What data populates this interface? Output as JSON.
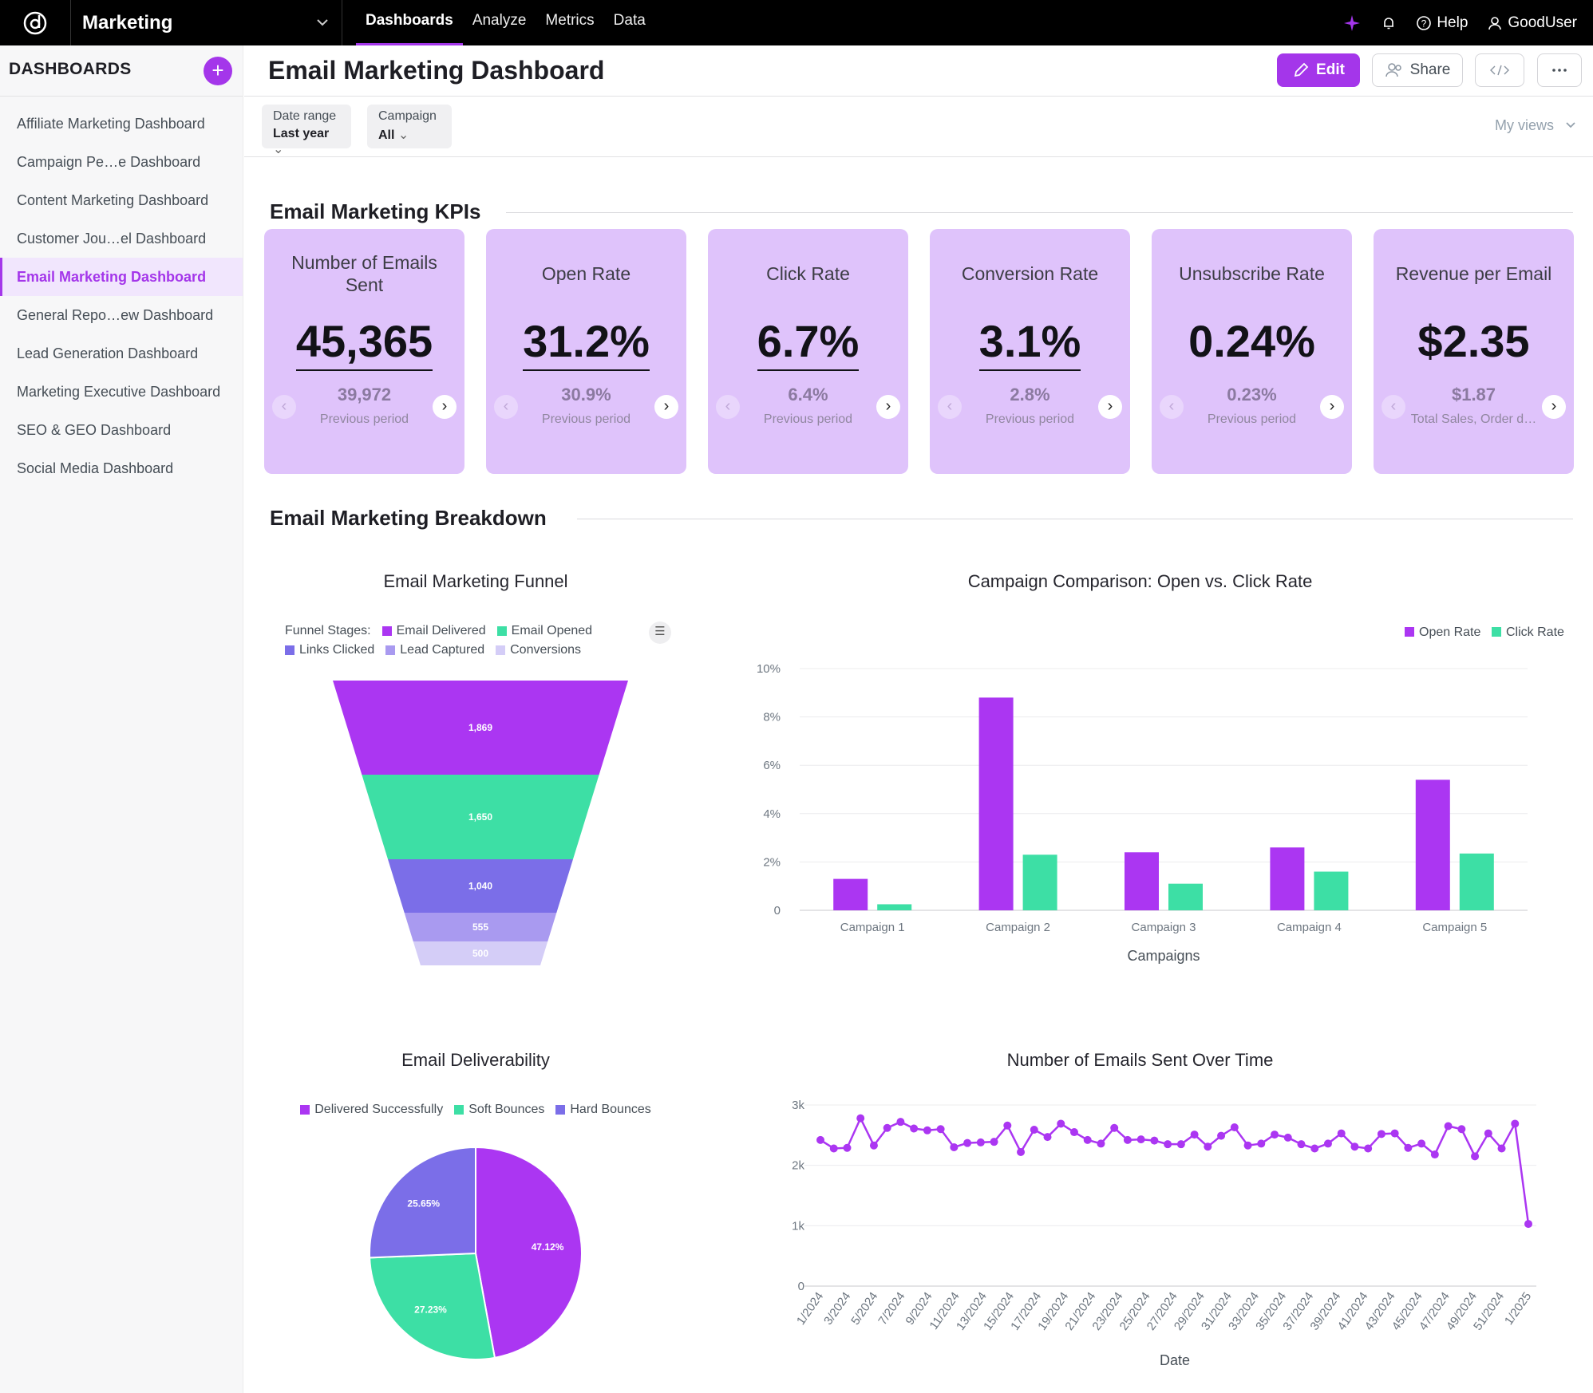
{
  "topbar": {
    "workspace": "Marketing",
    "nav": [
      "Dashboards",
      "Analyze",
      "Metrics",
      "Data"
    ],
    "help": "Help",
    "user": "GoodUser"
  },
  "sidebar": {
    "title": "DASHBOARDS",
    "items": [
      "Affiliate Marketing Dashboard",
      "Campaign Pe…e Dashboard",
      "Content Marketing Dashboard",
      "Customer Jou…el Dashboard",
      "Email Marketing Dashboard",
      "General Repo…ew Dashboard",
      "Lead Generation Dashboard",
      "Marketing Executive Dashboard",
      "SEO & GEO Dashboard",
      "Social Media Dashboard"
    ],
    "active_index": 4
  },
  "header": {
    "title": "Email Marketing Dashboard",
    "edit": "Edit",
    "share": "Share"
  },
  "filters": {
    "date_label": "Date range",
    "date_value": "Last year",
    "campaign_label": "Campaign",
    "campaign_value": "All",
    "my_views": "My views"
  },
  "kpi_section": "Email Marketing KPIs",
  "kpis": [
    {
      "title": "Number of Emails Sent",
      "value": "45,365",
      "prev": "39,972",
      "prev_label": "Previous period"
    },
    {
      "title": "Open Rate",
      "value": "31.2%",
      "prev": "30.9%",
      "prev_label": "Previous period"
    },
    {
      "title": "Click Rate",
      "value": "6.7%",
      "prev": "6.4%",
      "prev_label": "Previous period"
    },
    {
      "title": "Conversion Rate",
      "value": "3.1%",
      "prev": "2.8%",
      "prev_label": "Previous period"
    },
    {
      "title": "Unsubscribe Rate",
      "value": "0.24%",
      "prev": "0.23%",
      "prev_label": "Previous period"
    },
    {
      "title": "Revenue per Email",
      "value": "$2.35",
      "prev": "$1.87",
      "prev_label": "Total Sales, Order d…"
    }
  ],
  "breakdown_section": "Email Marketing Breakdown",
  "colors": {
    "purple": "#ab36f2",
    "green": "#3ddfa5",
    "blue": "#7b6ee8",
    "lavender": "#a99af0",
    "pale": "#d4cdf7"
  },
  "funnel": {
    "title": "Email Marketing Funnel",
    "legend_prefix": "Funnel Stages:"
  },
  "chart_data": [
    {
      "type": "funnel",
      "title": "Email Marketing Funnel",
      "categories": [
        "Email Delivered",
        "Email Opened",
        "Links Clicked",
        "Lead Captured",
        "Conversions"
      ],
      "values": [
        1869,
        1650,
        1040,
        555,
        500
      ],
      "labels": [
        "1,869",
        "1,650",
        "1,040",
        "555",
        "500"
      ]
    },
    {
      "type": "bar",
      "title": "Campaign Comparison: Open vs. Click Rate",
      "xlabel": "Campaigns",
      "ylabel": "",
      "categories": [
        "Campaign 1",
        "Campaign 2",
        "Campaign 3",
        "Campaign 4",
        "Campaign 5"
      ],
      "series": [
        {
          "name": "Open Rate",
          "values": [
            1.3,
            8.8,
            2.4,
            2.6,
            5.4
          ]
        },
        {
          "name": "Click Rate",
          "values": [
            0.25,
            2.3,
            1.1,
            1.6,
            2.35
          ]
        }
      ],
      "ylim": [
        0,
        10
      ],
      "yticks": [
        0,
        2,
        4,
        6,
        8,
        10
      ],
      "ytick_labels": [
        "0",
        "2%",
        "4%",
        "6%",
        "8%",
        "10%"
      ]
    },
    {
      "type": "pie",
      "title": "Email Deliverability",
      "categories": [
        "Delivered Successfully",
        "Soft Bounces",
        "Hard Bounces"
      ],
      "values": [
        47.12,
        27.23,
        25.65
      ],
      "labels": [
        "47.12%",
        "27.23%",
        "25.65%"
      ]
    },
    {
      "type": "line",
      "title": "Number of Emails Sent Over Time",
      "xlabel": "Date",
      "ylim": [
        0,
        3000
      ],
      "yticks": [
        0,
        1000,
        2000,
        3000
      ],
      "ytick_labels": [
        "0",
        "1k",
        "2k",
        "3k"
      ],
      "x_tick_labels": [
        "1/2024",
        "3/2024",
        "5/2024",
        "7/2024",
        "9/2024",
        "11/2024",
        "13/2024",
        "15/2024",
        "17/2024",
        "19/2024",
        "21/2024",
        "23/2024",
        "25/2024",
        "27/2024",
        "29/2024",
        "31/2024",
        "33/2024",
        "35/2024",
        "37/2024",
        "39/2024",
        "41/2024",
        "43/2024",
        "45/2024",
        "47/2024",
        "49/2024",
        "51/2024",
        "1/2025"
      ],
      "values": [
        2420,
        2280,
        2290,
        2780,
        2330,
        2620,
        2720,
        2610,
        2580,
        2600,
        2300,
        2370,
        2380,
        2390,
        2660,
        2220,
        2590,
        2470,
        2690,
        2550,
        2420,
        2360,
        2620,
        2420,
        2430,
        2410,
        2350,
        2350,
        2510,
        2310,
        2490,
        2630,
        2330,
        2360,
        2510,
        2460,
        2350,
        2280,
        2360,
        2530,
        2310,
        2280,
        2520,
        2530,
        2290,
        2360,
        2180,
        2650,
        2600,
        2150,
        2530,
        2280,
        2690,
        1030
      ]
    }
  ]
}
